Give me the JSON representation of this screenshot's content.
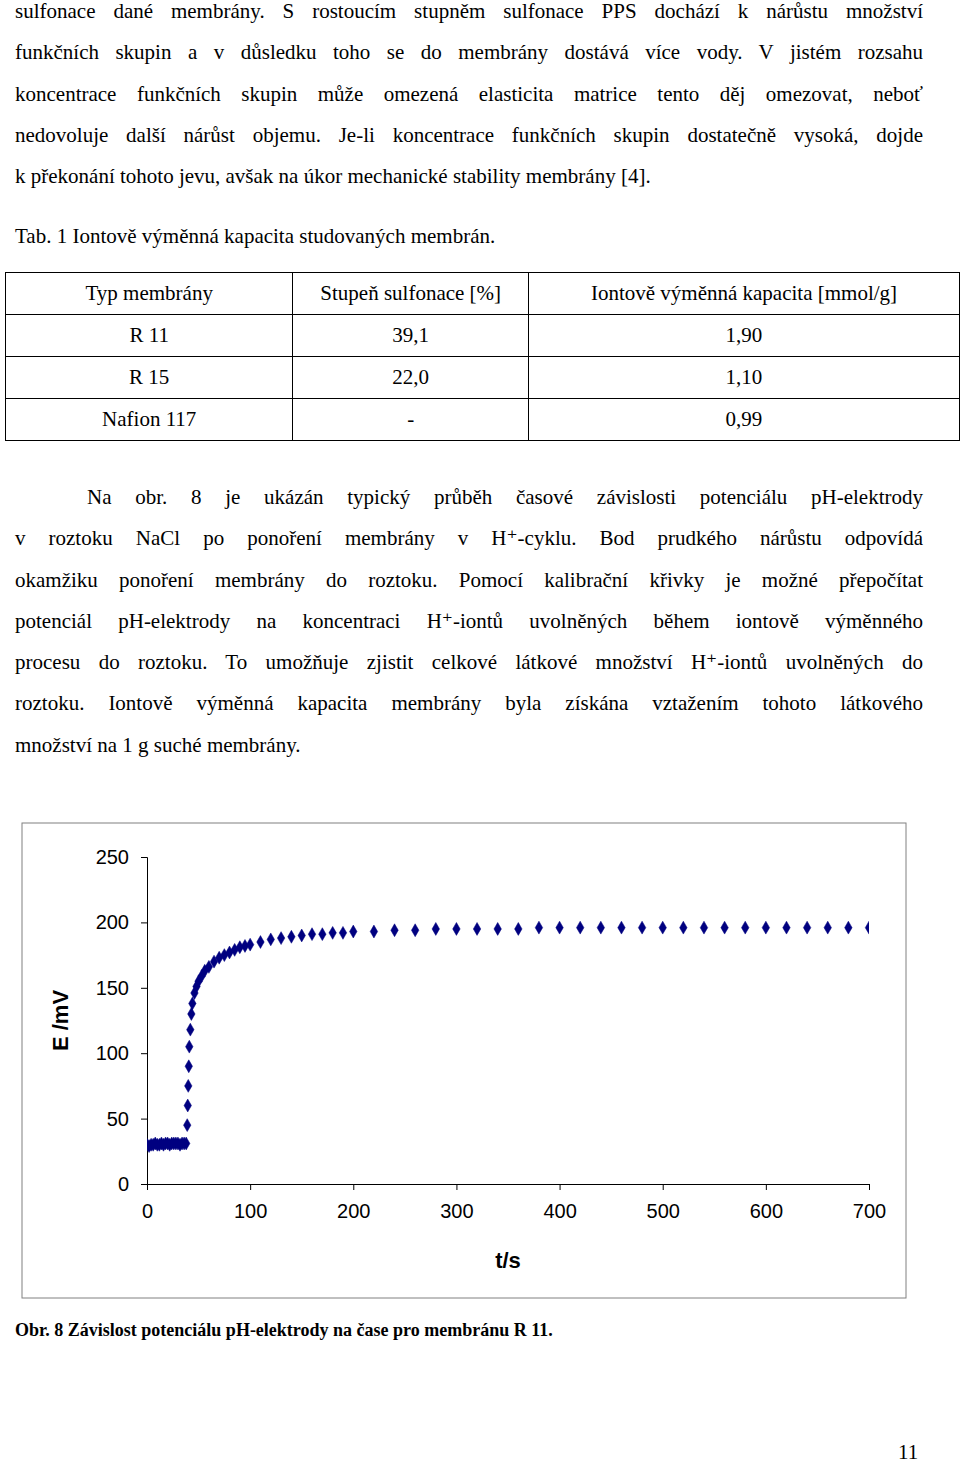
{
  "paragraph_1": [
    "sulfonace dané membrány. S rostoucím stupněm sulfonace PPS dochází k nárůstu množství",
    "funkčních skupin a v důsledku toho se do membrány dostává více vody. V jistém rozsahu",
    "koncentrace funkčních skupin může omezená elasticita matrice tento děj omezovat, neboť",
    "nedovoluje další nárůst objemu. Je-li koncentrace funkčních skupin dostatečně vysoká, dojde",
    "k překonání tohoto jevu, avšak na úkor mechanické stability membrány [4]."
  ],
  "table": {
    "caption": "Tab. 1 Iontově výměnná kapacita studovaných membrán.",
    "header": [
      "Typ membrány",
      "Stupeň sulfonace [%]",
      "Iontově výměnná kapacita [mmol/g]"
    ],
    "rows": [
      [
        "R 11",
        "39,1",
        "1,90"
      ],
      [
        "R 15",
        "22,0",
        "1,10"
      ],
      [
        "Nafion 117",
        "-",
        "0,99"
      ]
    ]
  },
  "paragraph_2": [
    "Na obr. 8 je ukázán typický průběh časové závislosti potenciálu pH-elektrody",
    "v roztoku NaCl po ponoření membrány v H⁺-cyklu. Bod prudkého nárůstu odpovídá",
    "okamžiku ponoření membrány do roztoku. Pomocí kalibrační křivky je možné přepočítat",
    "potenciál pH-elektrody na koncentraci H⁺-iontů uvolněných během iontově výměnného",
    "procesu do roztoku. To umožňuje zjistit celkové látkové množství H⁺-iontů uvolněných do",
    "roztoku. Iontově výměnná kapacita membrány byla získána vztažením tohoto látkového",
    "množství na 1 g suché membrány."
  ],
  "chart_data": {
    "type": "scatter",
    "x_label": "t/s",
    "y_label": "E /mV",
    "x": [
      0,
      2,
      4,
      6,
      8,
      10,
      12,
      14,
      16,
      18,
      20,
      22,
      24,
      26,
      28,
      30,
      32,
      34,
      36,
      38,
      39,
      39.5,
      40,
      40.5,
      41,
      42,
      43,
      44,
      46,
      48,
      50,
      53,
      56,
      60,
      65,
      70,
      75,
      80,
      85,
      90,
      95,
      100,
      110,
      120,
      130,
      140,
      150,
      160,
      170,
      180,
      190,
      200,
      220,
      240,
      260,
      280,
      300,
      320,
      340,
      360,
      380,
      400,
      420,
      440,
      460,
      480,
      500,
      520,
      540,
      560,
      580,
      600,
      620,
      640,
      660,
      680,
      700
    ],
    "values": [
      30,
      29,
      30,
      30,
      31,
      30,
      30,
      31,
      30,
      31,
      31,
      30,
      31,
      31,
      31,
      31,
      30,
      31,
      31,
      31,
      45,
      60,
      75,
      90,
      105,
      118,
      130,
      138,
      146,
      151,
      155,
      159,
      163,
      166,
      170,
      173,
      175,
      177,
      179,
      181,
      182,
      183,
      185,
      187,
      188,
      189,
      190,
      191,
      191,
      192,
      192,
      193,
      193,
      194,
      194,
      195,
      195,
      195,
      195,
      195,
      196,
      196,
      196,
      196,
      196,
      196,
      196,
      196,
      196,
      196,
      196,
      196,
      196,
      196,
      196,
      196,
      196
    ],
    "color": "#000080",
    "marker": "diamond",
    "xlim": [
      0,
      700
    ],
    "xticks": [
      0,
      100,
      200,
      300,
      400,
      500,
      600,
      700
    ],
    "ylim": [
      0,
      250
    ],
    "yticks": [
      0,
      50,
      100,
      150,
      200,
      250
    ],
    "grid": false
  },
  "figure_caption": "Obr. 8 Závislost potenciálu pH-elektrody na čase pro membránu R 11.",
  "page_number": "11"
}
